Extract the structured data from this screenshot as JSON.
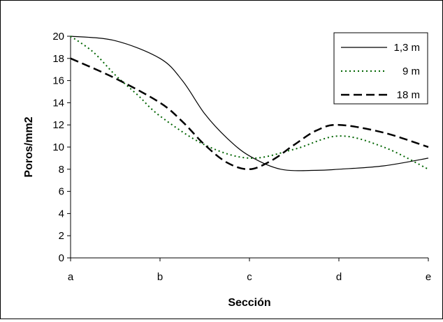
{
  "chart_data": {
    "type": "line",
    "title": "",
    "xlabel": "Sección",
    "ylabel": "Poros/mm2",
    "categories": [
      "a",
      "b",
      "c",
      "d",
      "e"
    ],
    "ylim": [
      0,
      20
    ],
    "yticks": [
      "0",
      "2",
      "4",
      "6",
      "8",
      "10",
      "12",
      "14",
      "16",
      "18",
      "20"
    ],
    "grid": false,
    "legend_position": "top-right",
    "series": [
      {
        "name": "1,3 m",
        "color": "#000000",
        "style": "solid",
        "x": [
          0,
          0.5,
          1.0,
          1.25,
          1.5,
          1.75,
          2.0,
          2.35,
          2.75,
          3.0,
          3.5,
          4.0
        ],
        "values": [
          20,
          19.6,
          18,
          16,
          13,
          10.8,
          9.2,
          8.0,
          7.9,
          8.0,
          8.3,
          9.0
        ]
      },
      {
        "name": "9 m",
        "color": "#006400",
        "style": "dotted",
        "x": [
          0,
          0.25,
          0.5,
          0.75,
          1.0,
          1.5,
          2.0,
          2.5,
          3.0,
          3.5,
          4.0
        ],
        "values": [
          20,
          18.6,
          16.5,
          14.7,
          12.8,
          10.2,
          9.0,
          9.8,
          11.0,
          10,
          8
        ]
      },
      {
        "name": "18 m",
        "color": "#000000",
        "style": "dashed",
        "x": [
          0,
          0.5,
          1.0,
          1.25,
          1.5,
          1.75,
          2.0,
          2.25,
          2.5,
          2.75,
          3.0,
          3.5,
          4.0
        ],
        "values": [
          18,
          16.2,
          14,
          12.3,
          10.2,
          8.6,
          8.0,
          8.8,
          10.2,
          11.5,
          12.0,
          11.3,
          10.0
        ]
      }
    ]
  }
}
